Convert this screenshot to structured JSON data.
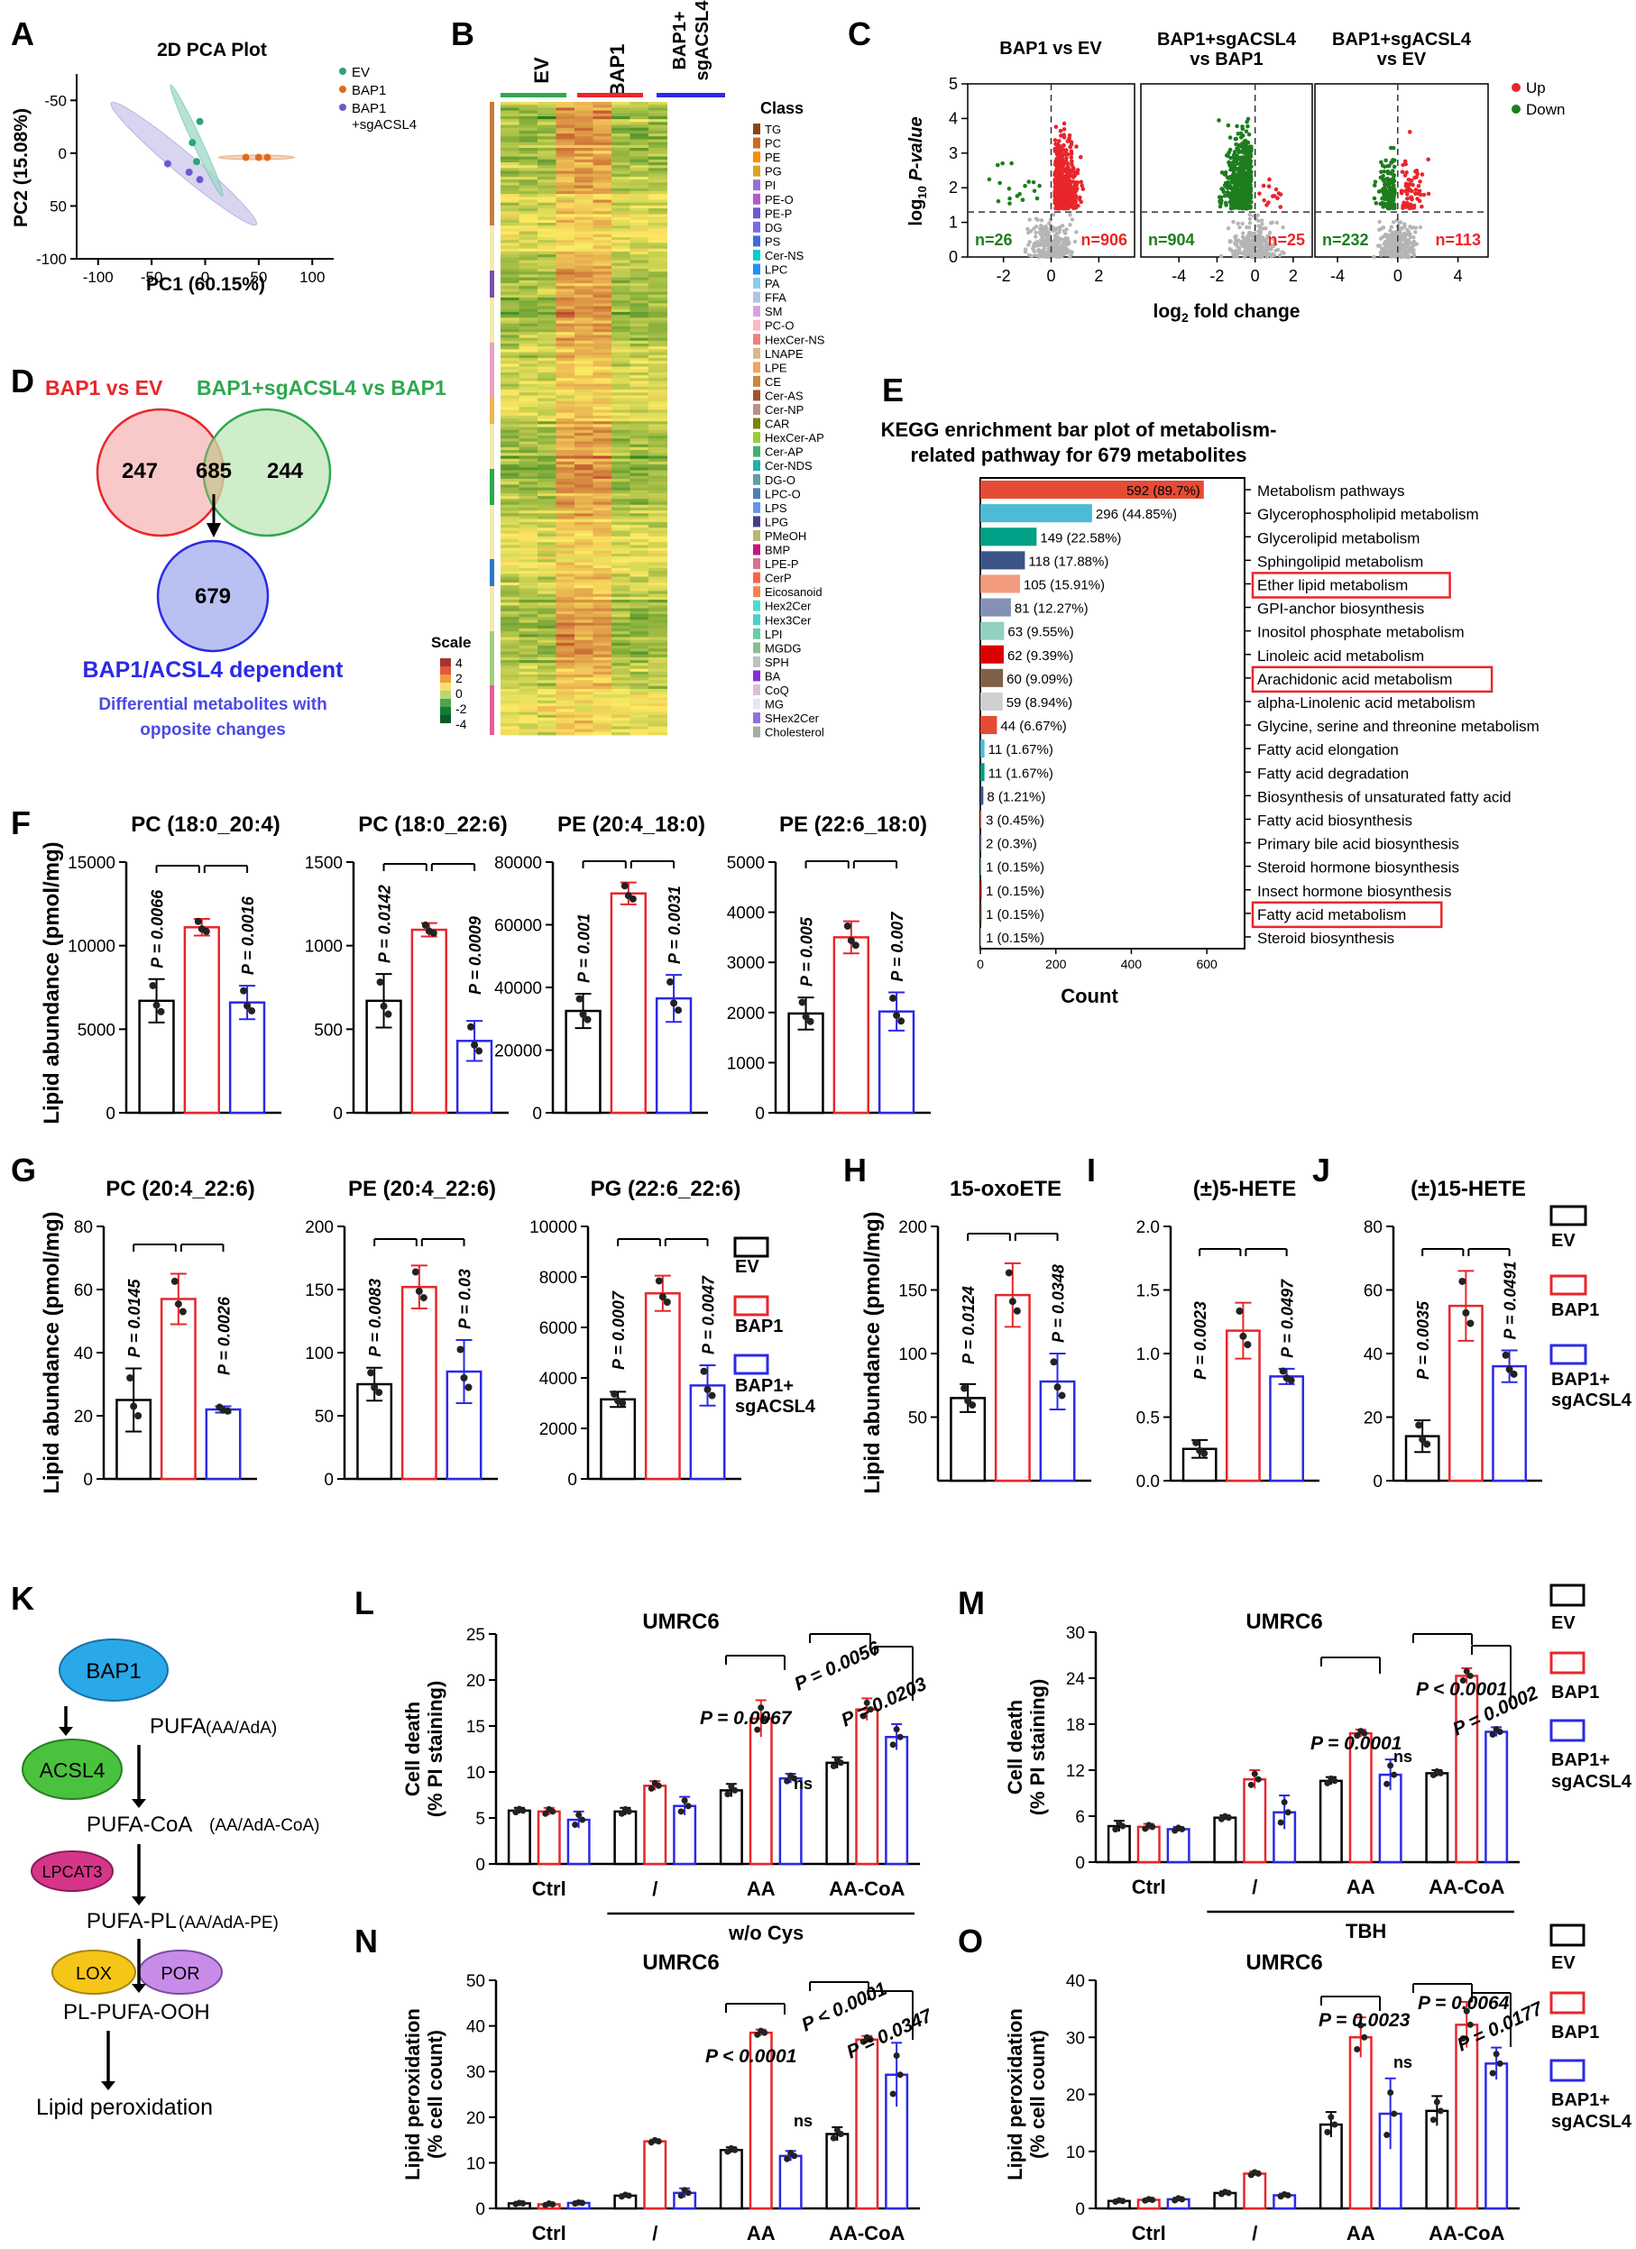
{
  "colors": {
    "ev": "#000000",
    "bap1": "#e8262b",
    "sg": "#2a2ae6",
    "up": "#e8262b",
    "down": "#1e7d1e",
    "gray": "#b5b5b5"
  },
  "panels": [
    "A",
    "B",
    "C",
    "D",
    "E",
    "F",
    "G",
    "H",
    "I",
    "J",
    "K",
    "L",
    "M",
    "N",
    "O"
  ],
  "legend": {
    "ev": "EV",
    "bap1": "BAP1",
    "sg1": "BAP1+",
    "sg2": "sgACSL4",
    "sgpca": "+sgACSL4",
    "up": "Up",
    "down": "Down"
  },
  "pca": {
    "title": "2D PCA Plot",
    "xlabel": "PC1 (60.15%)",
    "ylabel": "PC2 (15.08%)",
    "xticks": [
      "-100",
      "-50",
      "0",
      "50",
      "100"
    ],
    "yticks": [
      "-50",
      "0",
      "50",
      "-100"
    ],
    "points": {
      "ev": [
        [
          -5,
          -30
        ],
        [
          -12,
          -10
        ],
        [
          -8,
          8
        ]
      ],
      "bap1": [
        [
          38,
          4
        ],
        [
          50,
          4
        ],
        [
          58,
          4
        ]
      ],
      "sg": [
        [
          -35,
          10
        ],
        [
          -15,
          18
        ],
        [
          -5,
          25
        ]
      ]
    }
  },
  "heatmap": {
    "groups": [
      "EV",
      "BAP1",
      "BAP1+",
      "sgACSL4"
    ],
    "class_title": "Class",
    "scale_title": "Scale",
    "scale_ticks": [
      "4",
      "2",
      "0",
      "-2",
      "-4"
    ],
    "classes": [
      "TG",
      "PC",
      "PE",
      "PG",
      "PI",
      "PE-O",
      "PE-P",
      "DG",
      "PS",
      "Cer-NS",
      "LPC",
      "PA",
      "FFA",
      "SM",
      "PC-O",
      "HexCer-NS",
      "LNAPE",
      "LPE",
      "CE",
      "Cer-AS",
      "Cer-NP",
      "CAR",
      "HexCer-AP",
      "Cer-AP",
      "Cer-NDS",
      "DG-O",
      "LPC-O",
      "LPS",
      "LPG",
      "PMeOH",
      "BMP",
      "LPE-P",
      "CerP",
      "Eicosanoid",
      "Hex2Cer",
      "Hex3Cer",
      "LPI",
      "MGDG",
      "SPH",
      "BA",
      "CoQ",
      "MG",
      "SHex2Cer",
      "Cholesterol"
    ],
    "class_colors": [
      "#8B4513",
      "#D2691E",
      "#FF8C00",
      "#DAA520",
      "#9370DB",
      "#BA55D3",
      "#6A5ACD",
      "#7B68EE",
      "#4169E1",
      "#00CED1",
      "#1E90FF",
      "#87CEEB",
      "#B0C4DE",
      "#DDA0DD",
      "#FFB6C1",
      "#F08080",
      "#DEB887",
      "#F4A460",
      "#CD853F",
      "#A0522D",
      "#BC8F8F",
      "#808000",
      "#9ACD32",
      "#3CB371",
      "#20B2AA",
      "#5F9EA0",
      "#4682B4",
      "#6495ED",
      "#483D8B",
      "#BDB76B",
      "#C71585",
      "#DB7093",
      "#FF6347",
      "#FF7F50",
      "#40E0D0",
      "#48D1CC",
      "#66CDAA",
      "#8FBC8F",
      "#C0C0C0",
      "#8A2BE2",
      "#D8BFD8",
      "#E6E6FA",
      "#9370DB",
      "#A9A9A9"
    ]
  },
  "volcano": {
    "titles": [
      "BAP1 vs EV",
      "BAP1+sgACSL4",
      "vs BAP1",
      "BAP1+sgACSL4",
      "vs EV"
    ],
    "ylabel_a": "log",
    "ylabel_sub": "10",
    "ylabel_b": " P-value",
    "xlabel_a": "log",
    "xlabel_sub": "2",
    "xlabel_b": " fold change",
    "counts": [
      [
        "n=26",
        "n=906"
      ],
      [
        "n=904",
        "n=25"
      ],
      [
        "n=232",
        "n=113"
      ]
    ],
    "xticks": [
      [
        "-2",
        "0",
        "2"
      ],
      [
        "-4",
        "-2",
        "0",
        "2"
      ],
      [
        "-4",
        "0",
        "4"
      ]
    ],
    "yticks": [
      "0",
      "1",
      "2",
      "3",
      "4",
      "5"
    ]
  },
  "venn": {
    "title_left": "BAP1 vs EV",
    "title_right": "BAP1+sgACSL4 vs BAP1",
    "left": "247",
    "mid": "685",
    "right": "244",
    "bottom": "679",
    "label": "BAP1/ACSL4 dependent",
    "note1": "Differential metabolites with",
    "note2": "opposite changes"
  },
  "kegg": {
    "title1": "KEGG enrichment bar plot of metabolism-",
    "title2": "related pathway for 679  metabolites",
    "xlabel": "Count",
    "xticks": [
      "0",
      "200",
      "400",
      "600"
    ],
    "bars": [
      {
        "name": "Metabolism pathways",
        "value": 592,
        "label": "592 (89.7%)",
        "color": "#e64b35"
      },
      {
        "name": "Glycerophospholipid metabolism",
        "value": 296,
        "label": "296 (44.85%)",
        "color": "#4dbbd5"
      },
      {
        "name": "Glycerolipid metabolism",
        "value": 149,
        "label": "149 (22.58%)",
        "color": "#00a087"
      },
      {
        "name": "Sphingolipid metabolism",
        "value": 118,
        "label": "118 (17.88%)",
        "color": "#3c5488"
      },
      {
        "name": "Ether lipid metabolism",
        "value": 105,
        "label": "105 (15.91%)",
        "color": "#f39b7f",
        "box": true
      },
      {
        "name": "GPI-anchor biosynthesis",
        "value": 81,
        "label": "81 (12.27%)",
        "color": "#8491b4"
      },
      {
        "name": "Inositol phosphate metabolism",
        "value": 63,
        "label": "63 (9.55%)",
        "color": "#91d1c2"
      },
      {
        "name": "Linoleic acid metabolism",
        "value": 62,
        "label": "62 (9.39%)",
        "color": "#dc0000"
      },
      {
        "name": "Arachidonic acid metabolism",
        "value": 60,
        "label": "60 (9.09%)",
        "color": "#7e6148",
        "box": true
      },
      {
        "name": "alpha-Linolenic acid metabolism",
        "value": 59,
        "label": "59 (8.94%)",
        "color": "#d0d0d0"
      },
      {
        "name": "Glycine, serine and threonine metabolism",
        "value": 44,
        "label": "44 (6.67%)",
        "color": "#e64b35"
      },
      {
        "name": "Fatty acid elongation",
        "value": 11,
        "label": "11 (1.67%)",
        "color": "#4dbbd5"
      },
      {
        "name": "Fatty acid degradation",
        "value": 11,
        "label": "11 (1.67%)",
        "color": "#00a087"
      },
      {
        "name": "Biosynthesis of unsaturated fatty acid",
        "value": 8,
        "label": "8 (1.21%)",
        "color": "#3c5488"
      },
      {
        "name": "Fatty acid biosynthesis",
        "value": 3,
        "label": "3 (0.45%)",
        "color": "#f39b7f"
      },
      {
        "name": "Primary bile acid biosynthesis",
        "value": 2,
        "label": "2 (0.3%)",
        "color": "#8491b4"
      },
      {
        "name": "Steroid hormone biosynthesis",
        "value": 1,
        "label": "1 (0.15%)",
        "color": "#91d1c2"
      },
      {
        "name": "Insect hormone biosynthesis",
        "value": 1,
        "label": "1 (0.15%)",
        "color": "#dc0000"
      },
      {
        "name": "Fatty acid metabolism",
        "value": 1,
        "label": "1 (0.15%)",
        "color": "#7e6148",
        "box": true
      },
      {
        "name": "Steroid biosynthesis",
        "value": 1,
        "label": "1 (0.15%)",
        "color": "#d0d0d0"
      }
    ]
  },
  "chart_data": [
    {
      "type": "bar",
      "title": "PC (18:0_20:4)",
      "ylabel": "Lipid abundance (pmol/mg)",
      "ylim": [
        0,
        15000
      ],
      "yticks": [
        "0",
        "5000",
        "10000",
        "15000"
      ],
      "categories": [
        "EV",
        "BAP1",
        "BAP1+sgACSL4"
      ],
      "values": [
        6700,
        11100,
        6600
      ],
      "errors": [
        1300,
        500,
        1000
      ],
      "pvals": [
        "P = 0.0066",
        "P = 0.0016"
      ]
    },
    {
      "type": "bar",
      "title": "PC (18:0_22:6)",
      "ylim": [
        0,
        1500
      ],
      "yticks": [
        "0",
        "500",
        "1000",
        "1500"
      ],
      "categories": [
        "EV",
        "BAP1",
        "BAP1+sgACSL4"
      ],
      "values": [
        670,
        1095,
        430
      ],
      "errors": [
        160,
        40,
        120
      ],
      "pvals": [
        "P = 0.0142",
        "P = 0.0009"
      ]
    },
    {
      "type": "bar",
      "title": "PE (20:4_18:0)",
      "ylim": [
        0,
        80000
      ],
      "yticks": [
        "0",
        "20000",
        "40000",
        "60000",
        "80000"
      ],
      "categories": [
        "EV",
        "BAP1",
        "BAP1+sgACSL4"
      ],
      "values": [
        32500,
        70000,
        36500
      ],
      "errors": [
        5500,
        3500,
        7500
      ],
      "pvals": [
        "P = 0.001",
        "P = 0.0031"
      ]
    },
    {
      "type": "bar",
      "title": "PE (22:6_18:0)",
      "ylim": [
        0,
        5000
      ],
      "yticks": [
        "0",
        "1000",
        "2000",
        "3000",
        "4000",
        "5000"
      ],
      "categories": [
        "EV",
        "BAP1",
        "BAP1+sgACSL4"
      ],
      "values": [
        1980,
        3500,
        2020
      ],
      "errors": [
        320,
        320,
        380
      ],
      "pvals": [
        "P = 0.005",
        "P = 0.007"
      ]
    },
    {
      "type": "bar",
      "title": "PC (20:4_22:6)",
      "ylabel": "Lipid abundance (pmol/mg)",
      "ylim": [
        0,
        80
      ],
      "yticks": [
        "0",
        "20",
        "40",
        "60",
        "80"
      ],
      "categories": [
        "EV",
        "BAP1",
        "BAP1+sgACSL4"
      ],
      "values": [
        25,
        57,
        22
      ],
      "errors": [
        10,
        8,
        1
      ],
      "pvals": [
        "P = 0.0145",
        "P = 0.0026"
      ]
    },
    {
      "type": "bar",
      "title": "PE (20:4_22:6)",
      "ylim": [
        0,
        200
      ],
      "yticks": [
        "0",
        "50",
        "100",
        "150",
        "200"
      ],
      "categories": [
        "EV",
        "BAP1",
        "BAP1+sgACSL4"
      ],
      "values": [
        75,
        152,
        85
      ],
      "errors": [
        13,
        17,
        25
      ],
      "pvals": [
        "P = 0.0083",
        "P = 0.03"
      ]
    },
    {
      "type": "bar",
      "title": "PG (22:6_22:6)",
      "ylim": [
        0,
        10000
      ],
      "yticks": [
        "0",
        "2000",
        "4000",
        "6000",
        "8000",
        "10000"
      ],
      "categories": [
        "EV",
        "BAP1",
        "BAP1+sgACSL4"
      ],
      "values": [
        3150,
        7350,
        3700
      ],
      "errors": [
        300,
        700,
        800
      ],
      "pvals": [
        "P = 0.0007",
        "P = 0.0047"
      ]
    },
    {
      "type": "bar",
      "title": "15-oxoETE",
      "ylabel": "Lipid abundance (pmol/mg)",
      "ylim": [
        0,
        200
      ],
      "yticks": [
        "50",
        "100",
        "150",
        "200"
      ],
      "categories": [
        "EV",
        "BAP1",
        "BAP1+sgACSL4"
      ],
      "values": [
        65,
        146,
        78
      ],
      "errors": [
        11,
        25,
        22
      ],
      "pvals": [
        "P = 0.0124",
        "P = 0.0348"
      ]
    },
    {
      "type": "bar",
      "title": "(±)5-HETE",
      "ylim": [
        0,
        2
      ],
      "yticks": [
        "0.0",
        "0.5",
        "1.0",
        "1.5",
        "2.0"
      ],
      "categories": [
        "EV",
        "BAP1",
        "BAP1+sgACSL4"
      ],
      "values": [
        0.25,
        1.18,
        0.82
      ],
      "errors": [
        0.07,
        0.22,
        0.06
      ],
      "pvals": [
        "P = 0.0023",
        "P = 0.0497"
      ]
    },
    {
      "type": "bar",
      "title": "(±)15-HETE",
      "ylim": [
        0,
        80
      ],
      "yticks": [
        "0",
        "20",
        "40",
        "60",
        "80"
      ],
      "categories": [
        "EV",
        "BAP1",
        "BAP1+sgACSL4"
      ],
      "values": [
        14,
        55,
        36
      ],
      "errors": [
        5,
        11,
        5
      ],
      "pvals": [
        "P = 0.0035",
        "P = 0.0491"
      ]
    },
    {
      "type": "grouped-bar",
      "title": "UMRC6",
      "ylabel": "Cell death",
      "ylabel2": "(% PI staining)",
      "ylim": [
        0,
        25
      ],
      "yticks": [
        "0",
        "5",
        "10",
        "15",
        "20",
        "25"
      ],
      "groups": [
        "Ctrl",
        "/",
        "AA",
        "AA-CoA"
      ],
      "treatment": "w/o Cys",
      "series": [
        {
          "name": "EV",
          "values": [
            5.8,
            5.7,
            8.0,
            11.0
          ],
          "errors": [
            0.3,
            0.4,
            0.7,
            0.6
          ]
        },
        {
          "name": "BAP1",
          "values": [
            5.7,
            8.5,
            15.8,
            16.8
          ],
          "errors": [
            0.4,
            0.5,
            2.0,
            1.2
          ]
        },
        {
          "name": "BAP1+sgACSL4",
          "values": [
            4.8,
            6.3,
            9.3,
            13.8
          ],
          "errors": [
            0.9,
            1.0,
            0.5,
            1.4
          ]
        }
      ],
      "annotations": [
        "P = 0.0067",
        "ns",
        "P = 0.0056",
        "P = 0.0203"
      ]
    },
    {
      "type": "grouped-bar",
      "title": "UMRC6",
      "ylabel": "Cell death",
      "ylabel2": "(% PI staining)",
      "ylim": [
        0,
        30
      ],
      "yticks": [
        "0",
        "6",
        "12",
        "18",
        "24",
        "30"
      ],
      "groups": [
        "Ctrl",
        "/",
        "AA",
        "AA-CoA"
      ],
      "treatment": "TBH",
      "series": [
        {
          "name": "EV",
          "values": [
            4.7,
            5.8,
            10.6,
            11.6
          ],
          "errors": [
            0.7,
            0.3,
            0.5,
            0.4
          ]
        },
        {
          "name": "BAP1",
          "values": [
            4.6,
            10.8,
            16.8,
            24.3
          ],
          "errors": [
            0.4,
            1.2,
            0.5,
            1.0
          ]
        },
        {
          "name": "BAP1+sgACSL4",
          "values": [
            4.3,
            6.5,
            11.4,
            17.0
          ],
          "errors": [
            0.3,
            2.2,
            2.0,
            0.6
          ]
        }
      ],
      "annotations": [
        "P = 0.0001",
        "ns",
        "P < 0.0001",
        "P = 0.0002"
      ]
    },
    {
      "type": "grouped-bar",
      "title": "UMRC6",
      "ylabel": "Lipid peroxidation",
      "ylabel2": "(% cell count)",
      "ylim": [
        0,
        50
      ],
      "yticks": [
        "0",
        "10",
        "20",
        "30",
        "40",
        "50"
      ],
      "groups": [
        "Ctrl",
        "/",
        "AA",
        "AA-CoA"
      ],
      "treatment": "w/o Cys",
      "series": [
        {
          "name": "EV",
          "values": [
            1.1,
            2.8,
            12.8,
            16.3
          ],
          "errors": [
            0.2,
            0.3,
            0.6,
            1.5
          ]
        },
        {
          "name": "BAP1",
          "values": [
            0.9,
            14.7,
            38.5,
            37.0
          ],
          "errors": [
            0.3,
            0.4,
            0.7,
            0.8
          ]
        },
        {
          "name": "BAP1+sgACSL4",
          "values": [
            1.2,
            3.4,
            11.5,
            29.3
          ],
          "errors": [
            0.2,
            1.0,
            1.1,
            7.0
          ]
        }
      ],
      "annotations": [
        "P < 0.0001",
        "ns",
        "P < 0.0001",
        "P = 0.0347"
      ]
    },
    {
      "type": "grouped-bar",
      "title": "UMRC6",
      "ylabel": "Lipid peroxidation",
      "ylabel2": "(% cell count)",
      "ylim": [
        0,
        40
      ],
      "yticks": [
        "0",
        "10",
        "20",
        "30",
        "40"
      ],
      "groups": [
        "Ctrl",
        "/",
        "AA",
        "AA-CoA"
      ],
      "treatment": "TBH",
      "series": [
        {
          "name": "EV",
          "values": [
            1.3,
            2.7,
            14.7,
            17.1
          ],
          "errors": [
            0.2,
            0.3,
            2.2,
            2.6
          ]
        },
        {
          "name": "BAP1",
          "values": [
            1.5,
            6.1,
            30.0,
            32.2
          ],
          "errors": [
            0.2,
            0.4,
            3.5,
            4.0
          ]
        },
        {
          "name": "BAP1+sgACSL4",
          "values": [
            1.6,
            2.3,
            16.6,
            25.4
          ],
          "errors": [
            0.3,
            0.3,
            6.2,
            2.8
          ]
        }
      ],
      "annotations": [
        "P = 0.0023",
        "ns",
        "P = 0.0064",
        "P = 0.0177"
      ]
    }
  ],
  "pathway": {
    "bap1": "BAP1",
    "acsl4": "ACSL4",
    "lpcat3": "LPCAT3",
    "lox": "LOX",
    "por": "POR",
    "pufa": "PUFA",
    "pufa_sub": "(AA/AdA)",
    "pufacoa": "PUFA-CoA",
    "pufacoa_sub": "(AA/AdA-CoA)",
    "pufapl": "PUFA-PL",
    "pufapl_sub": "(AA/AdA-PE)",
    "ooh": "PL-PUFA-OOH",
    "end": "Lipid peroxidation"
  }
}
